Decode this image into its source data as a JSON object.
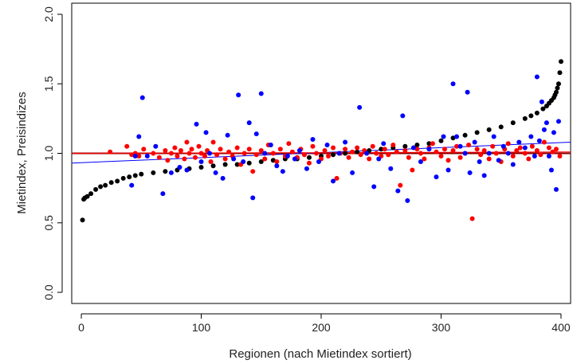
{
  "chart_data": {
    "type": "scatter",
    "title": "",
    "xlabel": "Regionen (nach Mietindex sortiert)",
    "ylabel": "Mietindex, Preisindizes",
    "xlim": [
      -8,
      408
    ],
    "ylim": [
      -0.08,
      2.08
    ],
    "x_ticks": [
      0,
      100,
      200,
      300,
      400
    ],
    "y_ticks": [
      0.0,
      0.5,
      1.0,
      1.5,
      2.0
    ],
    "x_tick_labels": [
      "0",
      "100",
      "200",
      "300",
      "400"
    ],
    "y_tick_labels": [
      "0.0",
      "0.5",
      "1.0",
      "1.5",
      "2.0"
    ],
    "grid": false,
    "series": [
      {
        "color": "#000000",
        "marker": "point",
        "description_points": "sorted rent index, one point per region (regions 1..400)",
        "x": [
          1,
          2,
          3,
          5,
          8,
          12,
          16,
          20,
          25,
          30,
          35,
          40,
          45,
          50,
          60,
          70,
          80,
          90,
          100,
          110,
          120,
          130,
          140,
          150,
          160,
          170,
          180,
          190,
          200,
          210,
          220,
          230,
          240,
          250,
          260,
          270,
          280,
          290,
          300,
          310,
          320,
          330,
          340,
          350,
          360,
          370,
          375,
          380,
          385,
          388,
          390,
          392,
          394,
          395,
          396,
          397,
          398,
          399,
          400
        ],
        "y": [
          0.52,
          0.67,
          0.68,
          0.69,
          0.71,
          0.74,
          0.76,
          0.77,
          0.79,
          0.8,
          0.82,
          0.83,
          0.84,
          0.85,
          0.86,
          0.87,
          0.88,
          0.89,
          0.9,
          0.91,
          0.92,
          0.92,
          0.93,
          0.94,
          0.95,
          0.96,
          0.96,
          0.97,
          0.98,
          0.99,
          1.0,
          1.01,
          1.02,
          1.03,
          1.04,
          1.05,
          1.06,
          1.07,
          1.09,
          1.11,
          1.13,
          1.15,
          1.17,
          1.19,
          1.22,
          1.25,
          1.27,
          1.29,
          1.32,
          1.34,
          1.36,
          1.38,
          1.4,
          1.42,
          1.44,
          1.47,
          1.5,
          1.58,
          1.66
        ]
      },
      {
        "color": "#ff0000",
        "marker": "point",
        "x": [
          24,
          38,
          42,
          45,
          48,
          52,
          60,
          65,
          70,
          72,
          75,
          78,
          80,
          83,
          86,
          88,
          90,
          92,
          95,
          98,
          100,
          103,
          105,
          108,
          110,
          113,
          116,
          120,
          123,
          126,
          130,
          133,
          136,
          140,
          143,
          146,
          150,
          153,
          156,
          160,
          163,
          166,
          170,
          173,
          176,
          180,
          183,
          186,
          190,
          193,
          196,
          200,
          203,
          206,
          210,
          213,
          216,
          220,
          223,
          226,
          230,
          233,
          236,
          240,
          243,
          246,
          250,
          253,
          256,
          260,
          263,
          266,
          270,
          273,
          276,
          280,
          283,
          286,
          290,
          293,
          296,
          300,
          303,
          306,
          310,
          313,
          316,
          320,
          323,
          326,
          330,
          333,
          336,
          340,
          343,
          346,
          350,
          353,
          356,
          360,
          363,
          366,
          370,
          373,
          376,
          380,
          383,
          386,
          390,
          393,
          396,
          399
        ],
        "y": [
          1.01,
          1.05,
          0.99,
          1.0,
          0.98,
          1.03,
          1.0,
          0.97,
          1.02,
          0.95,
          1.0,
          1.04,
          0.98,
          1.02,
          0.96,
          1.08,
          1.0,
          1.03,
          0.97,
          1.05,
          1.0,
          0.98,
          1.02,
          0.94,
          1.08,
          0.99,
          1.03,
          0.96,
          1.01,
          0.98,
          1.04,
          0.92,
          1.0,
          1.03,
          0.87,
          0.99,
          1.02,
          0.96,
          1.06,
          1.0,
          0.94,
          1.03,
          0.98,
          1.07,
          1.01,
          0.97,
          1.03,
          0.99,
          0.93,
          1.05,
          1.0,
          0.96,
          1.02,
          0.98,
          1.04,
          0.82,
          1.0,
          1.03,
          0.97,
          1.01,
          1.04,
          0.99,
          1.02,
          0.96,
          1.05,
          1.0,
          0.98,
          1.03,
          0.99,
          1.06,
          1.01,
          0.77,
          1.02,
          0.97,
          0.88,
          1.03,
          1.0,
          0.96,
          1.04,
          1.07,
          1.01,
          0.98,
          1.03,
          0.95,
          1.02,
          1.05,
          0.97,
          1.0,
          1.06,
          0.53,
          1.03,
          0.99,
          1.02,
          0.96,
          1.05,
          1.0,
          0.94,
          1.03,
          1.07,
          0.98,
          1.02,
          1.04,
          1.0,
          0.96,
          1.05,
          1.02,
          0.99,
          1.08,
          1.04,
          1.01,
          1.03,
          0.98
        ]
      },
      {
        "color": "#0000ff",
        "marker": "point",
        "x": [
          42,
          45,
          48,
          51,
          55,
          62,
          68,
          75,
          82,
          88,
          96,
          100,
          104,
          107,
          112,
          118,
          122,
          127,
          131,
          135,
          140,
          143,
          146,
          150,
          153,
          158,
          163,
          168,
          172,
          178,
          182,
          188,
          193,
          198,
          205,
          210,
          215,
          220,
          226,
          232,
          238,
          244,
          248,
          252,
          258,
          264,
          268,
          272,
          277,
          283,
          290,
          296,
          302,
          306,
          310,
          313,
          316,
          320,
          322,
          324,
          328,
          332,
          336,
          340,
          344,
          348,
          352,
          356,
          360,
          365,
          370,
          375,
          378,
          380,
          382,
          384,
          386,
          388,
          390,
          392,
          394,
          396,
          398
        ],
        "y": [
          0.77,
          0.98,
          1.12,
          1.4,
          0.98,
          1.05,
          0.71,
          0.86,
          0.9,
          0.88,
          1.21,
          0.94,
          1.15,
          1.0,
          0.86,
          0.82,
          1.13,
          0.96,
          1.42,
          0.94,
          1.22,
          0.68,
          1.14,
          1.43,
          1.0,
          1.06,
          0.91,
          0.87,
          0.98,
          0.96,
          1.02,
          0.89,
          1.1,
          0.94,
          1.06,
          0.8,
          1.0,
          1.08,
          0.86,
          1.33,
          1.0,
          0.76,
          0.96,
          1.07,
          0.89,
          0.73,
          1.27,
          0.66,
          1.04,
          0.94,
          1.03,
          0.83,
          1.12,
          0.88,
          1.5,
          1.12,
          1.05,
          1.0,
          1.44,
          0.86,
          1.08,
          0.94,
          0.84,
          1.0,
          1.12,
          0.95,
          1.05,
          1.0,
          0.92,
          1.08,
          1.04,
          1.12,
          0.98,
          1.55,
          1.09,
          1.37,
          1.17,
          1.22,
          0.98,
          0.88,
          1.15,
          0.74,
          1.23
        ]
      }
    ],
    "lines": [
      {
        "kind": "hline",
        "y": 1.0,
        "color": "#8b0000"
      },
      {
        "kind": "regression",
        "x0": -8,
        "y0": 0.93,
        "x1": 408,
        "y1": 1.08,
        "color": "#0000ff"
      },
      {
        "kind": "regression",
        "x0": -8,
        "y0": 1.0,
        "x1": 408,
        "y1": 1.01,
        "color": "#ff0000"
      }
    ]
  }
}
